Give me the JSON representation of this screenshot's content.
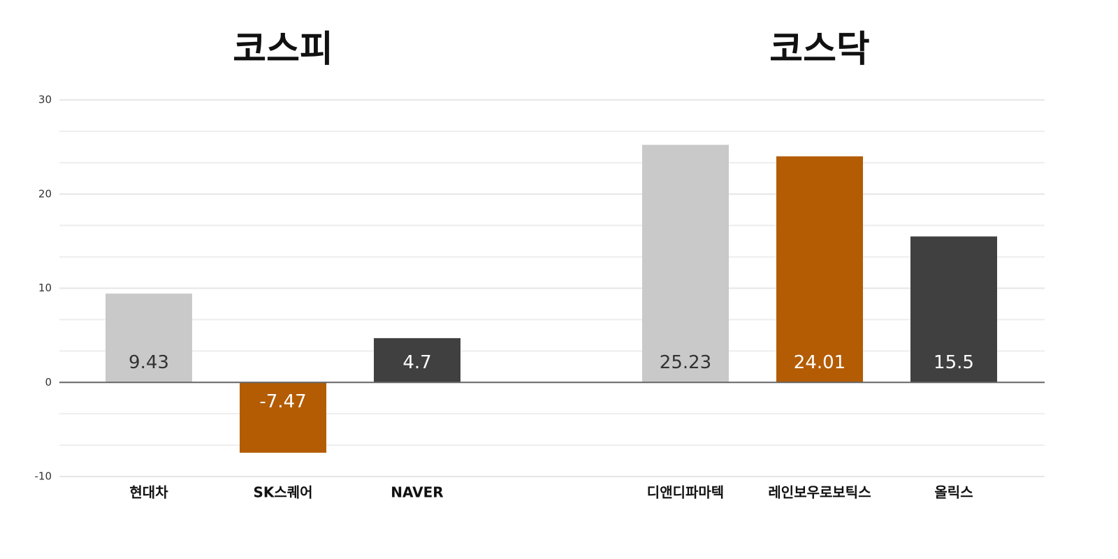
{
  "chart_data": {
    "type": "bar",
    "group_titles": [
      "코스피",
      "코스닥"
    ],
    "categories": [
      "현대차",
      "SK스퀘어",
      "NAVER",
      null,
      "디앤디파마텍",
      "레인보우로보틱스",
      "올릭스"
    ],
    "values": [
      9.43,
      -7.47,
      4.7,
      null,
      25.23,
      24.01,
      15.5
    ],
    "colors": [
      "#c9c9c9",
      "#b35c04",
      "#404040",
      null,
      "#c9c9c9",
      "#b35c04",
      "#404040"
    ],
    "ylim": [
      -10,
      30
    ],
    "yticks": [
      -10,
      0,
      10,
      20,
      30
    ],
    "grid": true
  }
}
